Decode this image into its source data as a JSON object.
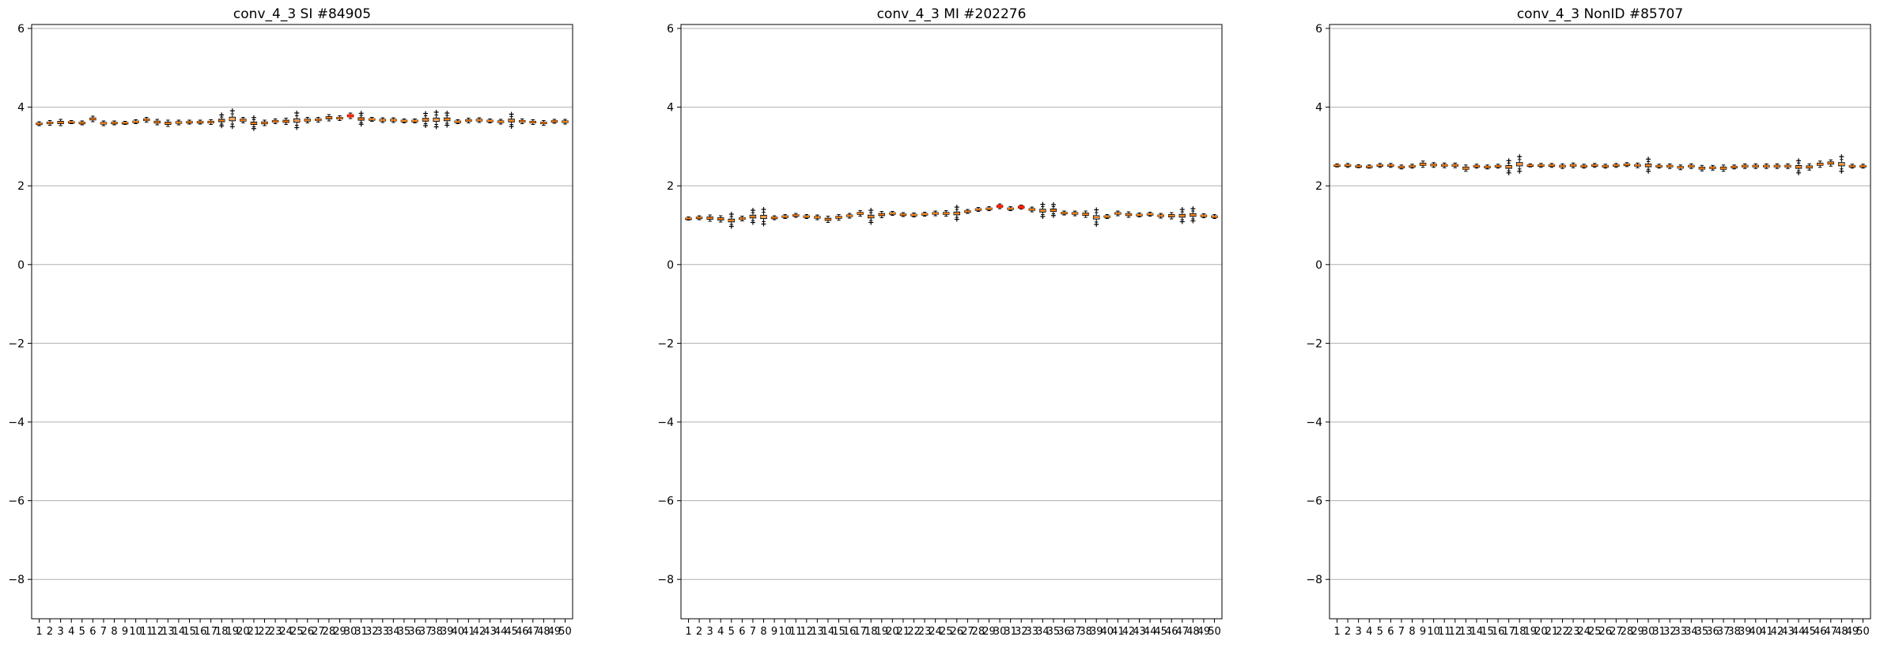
{
  "chart_data": [
    {
      "type": "box",
      "title": "conv_4_3 SI #84905",
      "xlabel": "",
      "ylabel": "",
      "ylim": [
        -9,
        6.1
      ],
      "yticks": [
        6,
        4,
        2,
        0,
        -2,
        -4,
        -6,
        -8
      ],
      "ytick_labels": [
        "6",
        "4",
        "2",
        "0",
        "−2",
        "−4",
        "−6",
        "−8"
      ],
      "grid": "y",
      "categories": [
        "1",
        "2",
        "3",
        "4",
        "5",
        "6",
        "7",
        "8",
        "9",
        "10",
        "11",
        "12",
        "13",
        "14",
        "15",
        "16",
        "17",
        "18",
        "19",
        "20",
        "21",
        "22",
        "23",
        "24",
        "25",
        "26",
        "27",
        "28",
        "29",
        "30",
        "31",
        "32",
        "33",
        "34",
        "35",
        "36",
        "37",
        "38",
        "39",
        "40",
        "41",
        "42",
        "43",
        "44",
        "45",
        "46",
        "47",
        "48",
        "49",
        "50"
      ],
      "medians": [
        3.58,
        3.6,
        3.61,
        3.62,
        3.6,
        3.7,
        3.59,
        3.6,
        3.6,
        3.63,
        3.68,
        3.62,
        3.59,
        3.61,
        3.62,
        3.62,
        3.62,
        3.66,
        3.7,
        3.67,
        3.59,
        3.6,
        3.64,
        3.64,
        3.66,
        3.67,
        3.68,
        3.73,
        3.72,
        3.78,
        3.7,
        3.69,
        3.67,
        3.67,
        3.65,
        3.65,
        3.68,
        3.68,
        3.69,
        3.63,
        3.66,
        3.67,
        3.65,
        3.63,
        3.66,
        3.64,
        3.62,
        3.6,
        3.64,
        3.63
      ],
      "spreads": [
        0.05,
        0.06,
        0.08,
        0.04,
        0.05,
        0.07,
        0.06,
        0.05,
        0.04,
        0.05,
        0.06,
        0.07,
        0.08,
        0.06,
        0.05,
        0.05,
        0.06,
        0.09,
        0.13,
        0.07,
        0.09,
        0.07,
        0.06,
        0.08,
        0.12,
        0.07,
        0.06,
        0.08,
        0.06,
        0.07,
        0.09,
        0.05,
        0.06,
        0.06,
        0.05,
        0.05,
        0.1,
        0.12,
        0.1,
        0.05,
        0.06,
        0.06,
        0.05,
        0.06,
        0.1,
        0.06,
        0.06,
        0.06,
        0.05,
        0.06
      ],
      "highlight": [
        30
      ]
    },
    {
      "type": "box",
      "title": "conv_4_3 MI #202276",
      "xlabel": "",
      "ylabel": "",
      "ylim": [
        -9,
        6.1
      ],
      "yticks": [
        6,
        4,
        2,
        0,
        -2,
        -4,
        -6,
        -8
      ],
      "ytick_labels": [
        "6",
        "4",
        "2",
        "0",
        "−2",
        "−4",
        "−6",
        "−8"
      ],
      "grid": "y",
      "categories": [
        "1",
        "2",
        "3",
        "4",
        "5",
        "6",
        "7",
        "8",
        "9",
        "10",
        "11",
        "12",
        "13",
        "14",
        "15",
        "16",
        "17",
        "18",
        "19",
        "20",
        "21",
        "22",
        "23",
        "24",
        "25",
        "26",
        "27",
        "28",
        "29",
        "30",
        "31",
        "32",
        "33",
        "34",
        "35",
        "36",
        "37",
        "38",
        "39",
        "40",
        "41",
        "42",
        "43",
        "44",
        "45",
        "46",
        "47",
        "48",
        "49",
        "50"
      ],
      "medians": [
        1.17,
        1.19,
        1.18,
        1.16,
        1.12,
        1.17,
        1.22,
        1.21,
        1.19,
        1.22,
        1.25,
        1.22,
        1.2,
        1.15,
        1.2,
        1.24,
        1.3,
        1.22,
        1.27,
        1.3,
        1.27,
        1.26,
        1.28,
        1.3,
        1.3,
        1.3,
        1.35,
        1.4,
        1.42,
        1.48,
        1.42,
        1.46,
        1.4,
        1.37,
        1.38,
        1.31,
        1.3,
        1.28,
        1.2,
        1.22,
        1.3,
        1.27,
        1.26,
        1.28,
        1.24,
        1.24,
        1.24,
        1.26,
        1.24,
        1.22
      ],
      "spreads": [
        0.04,
        0.05,
        0.08,
        0.08,
        0.1,
        0.06,
        0.1,
        0.12,
        0.05,
        0.05,
        0.05,
        0.05,
        0.06,
        0.08,
        0.07,
        0.06,
        0.07,
        0.1,
        0.08,
        0.05,
        0.05,
        0.05,
        0.05,
        0.06,
        0.07,
        0.1,
        0.05,
        0.05,
        0.05,
        0.06,
        0.05,
        0.05,
        0.06,
        0.1,
        0.09,
        0.05,
        0.06,
        0.08,
        0.12,
        0.05,
        0.06,
        0.07,
        0.05,
        0.05,
        0.06,
        0.08,
        0.1,
        0.1,
        0.05,
        0.05
      ],
      "highlight": [
        30,
        32
      ]
    },
    {
      "type": "box",
      "title": "conv_4_3 NonID #85707",
      "xlabel": "",
      "ylabel": "",
      "ylim": [
        -9,
        6.1
      ],
      "yticks": [
        6,
        4,
        2,
        0,
        -2,
        -4,
        -6,
        -8
      ],
      "ytick_labels": [
        "6",
        "4",
        "2",
        "0",
        "−2",
        "−4",
        "−6",
        "−8"
      ],
      "grid": "y",
      "categories": [
        "1",
        "2",
        "3",
        "4",
        "5",
        "6",
        "7",
        "8",
        "9",
        "10",
        "11",
        "12",
        "13",
        "14",
        "15",
        "16",
        "17",
        "18",
        "19",
        "20",
        "21",
        "22",
        "23",
        "24",
        "25",
        "26",
        "27",
        "28",
        "29",
        "30",
        "31",
        "32",
        "33",
        "34",
        "35",
        "36",
        "37",
        "38",
        "39",
        "40",
        "41",
        "42",
        "43",
        "44",
        "45",
        "46",
        "47",
        "48",
        "49",
        "50"
      ],
      "medians": [
        2.52,
        2.52,
        2.5,
        2.49,
        2.52,
        2.52,
        2.48,
        2.5,
        2.55,
        2.53,
        2.52,
        2.52,
        2.45,
        2.5,
        2.48,
        2.5,
        2.48,
        2.55,
        2.52,
        2.52,
        2.52,
        2.5,
        2.52,
        2.5,
        2.52,
        2.5,
        2.52,
        2.54,
        2.52,
        2.52,
        2.5,
        2.5,
        2.47,
        2.5,
        2.45,
        2.46,
        2.45,
        2.48,
        2.5,
        2.5,
        2.5,
        2.5,
        2.5,
        2.48,
        2.48,
        2.55,
        2.58,
        2.55,
        2.5,
        2.5
      ],
      "spreads": [
        0.04,
        0.05,
        0.04,
        0.04,
        0.05,
        0.05,
        0.05,
        0.05,
        0.08,
        0.06,
        0.06,
        0.06,
        0.08,
        0.05,
        0.05,
        0.05,
        0.1,
        0.12,
        0.04,
        0.05,
        0.05,
        0.06,
        0.06,
        0.05,
        0.05,
        0.05,
        0.05,
        0.05,
        0.06,
        0.1,
        0.05,
        0.06,
        0.06,
        0.06,
        0.07,
        0.06,
        0.08,
        0.05,
        0.06,
        0.06,
        0.06,
        0.06,
        0.06,
        0.1,
        0.08,
        0.08,
        0.08,
        0.12,
        0.05,
        0.05
      ],
      "highlight": []
    }
  ],
  "colors": {
    "median": "#ff7f0e",
    "highlight": "#ff2200",
    "box_stroke": "#000000",
    "grid": "#b0b0b0",
    "frame": "#000000"
  }
}
